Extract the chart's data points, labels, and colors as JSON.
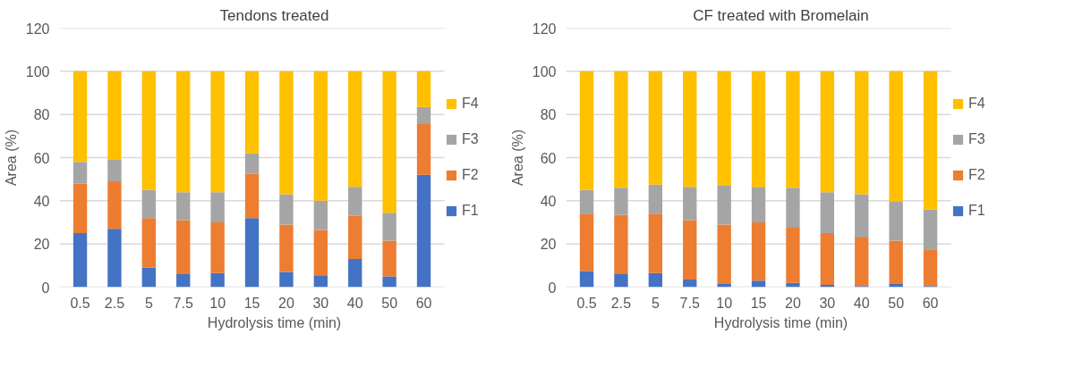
{
  "chart_data": [
    {
      "type": "bar",
      "stacked": true,
      "title": "Tendons treated",
      "xlabel": "Hydrolysis time (min)",
      "ylabel": "Area (%)",
      "categories": [
        "0.5",
        "2.5",
        "5",
        "7.5",
        "10",
        "15",
        "20",
        "30",
        "40",
        "50",
        "60"
      ],
      "ylim": [
        0,
        120
      ],
      "yticks": [
        0,
        20,
        40,
        60,
        80,
        100,
        120
      ],
      "grid": "y",
      "legend": "right",
      "series": [
        {
          "name": "F1",
          "color": "#4472c4",
          "values": [
            25,
            27,
            9,
            6,
            6.5,
            32,
            7,
            5.5,
            13,
            5,
            52
          ]
        },
        {
          "name": "F2",
          "color": "#ed7d31",
          "values": [
            23,
            22,
            23,
            25,
            23.5,
            20.5,
            22,
            21,
            20,
            16.5,
            23.5
          ]
        },
        {
          "name": "F3",
          "color": "#a5a5a5",
          "values": [
            10,
            10,
            13,
            13,
            14,
            9.5,
            14,
            13.5,
            13.5,
            13,
            8
          ]
        },
        {
          "name": "F4",
          "color": "#ffc000",
          "values": [
            42,
            41,
            55,
            56,
            56,
            38,
            57,
            60,
            53.5,
            65.5,
            16.5
          ]
        }
      ]
    },
    {
      "type": "bar",
      "stacked": true,
      "title": "CF treated with Bromelain",
      "xlabel": "Hydrolysis time (min)",
      "ylabel": "Area (%)",
      "categories": [
        "0.5",
        "2.5",
        "5",
        "7.5",
        "10",
        "15",
        "20",
        "30",
        "40",
        "50",
        "60"
      ],
      "ylim": [
        0,
        120
      ],
      "yticks": [
        0,
        20,
        40,
        60,
        80,
        100,
        120
      ],
      "grid": "y",
      "legend": "right",
      "series": [
        {
          "name": "F1",
          "color": "#4472c4",
          "values": [
            7.5,
            6,
            6.5,
            3.5,
            1.5,
            3,
            2,
            1,
            0.5,
            1.5,
            0.5
          ]
        },
        {
          "name": "F2",
          "color": "#ed7d31",
          "values": [
            26.5,
            27.5,
            27.5,
            27.5,
            27.5,
            27,
            25.5,
            24,
            22.5,
            20,
            17
          ]
        },
        {
          "name": "F3",
          "color": "#a5a5a5",
          "values": [
            11,
            12.5,
            13.5,
            15.5,
            18,
            16.5,
            18.5,
            19,
            20,
            18,
            18.5
          ]
        },
        {
          "name": "F4",
          "color": "#ffc000",
          "values": [
            55,
            54,
            52.5,
            53.5,
            53,
            53.5,
            54,
            56,
            57,
            60.5,
            64
          ]
        }
      ]
    }
  ]
}
